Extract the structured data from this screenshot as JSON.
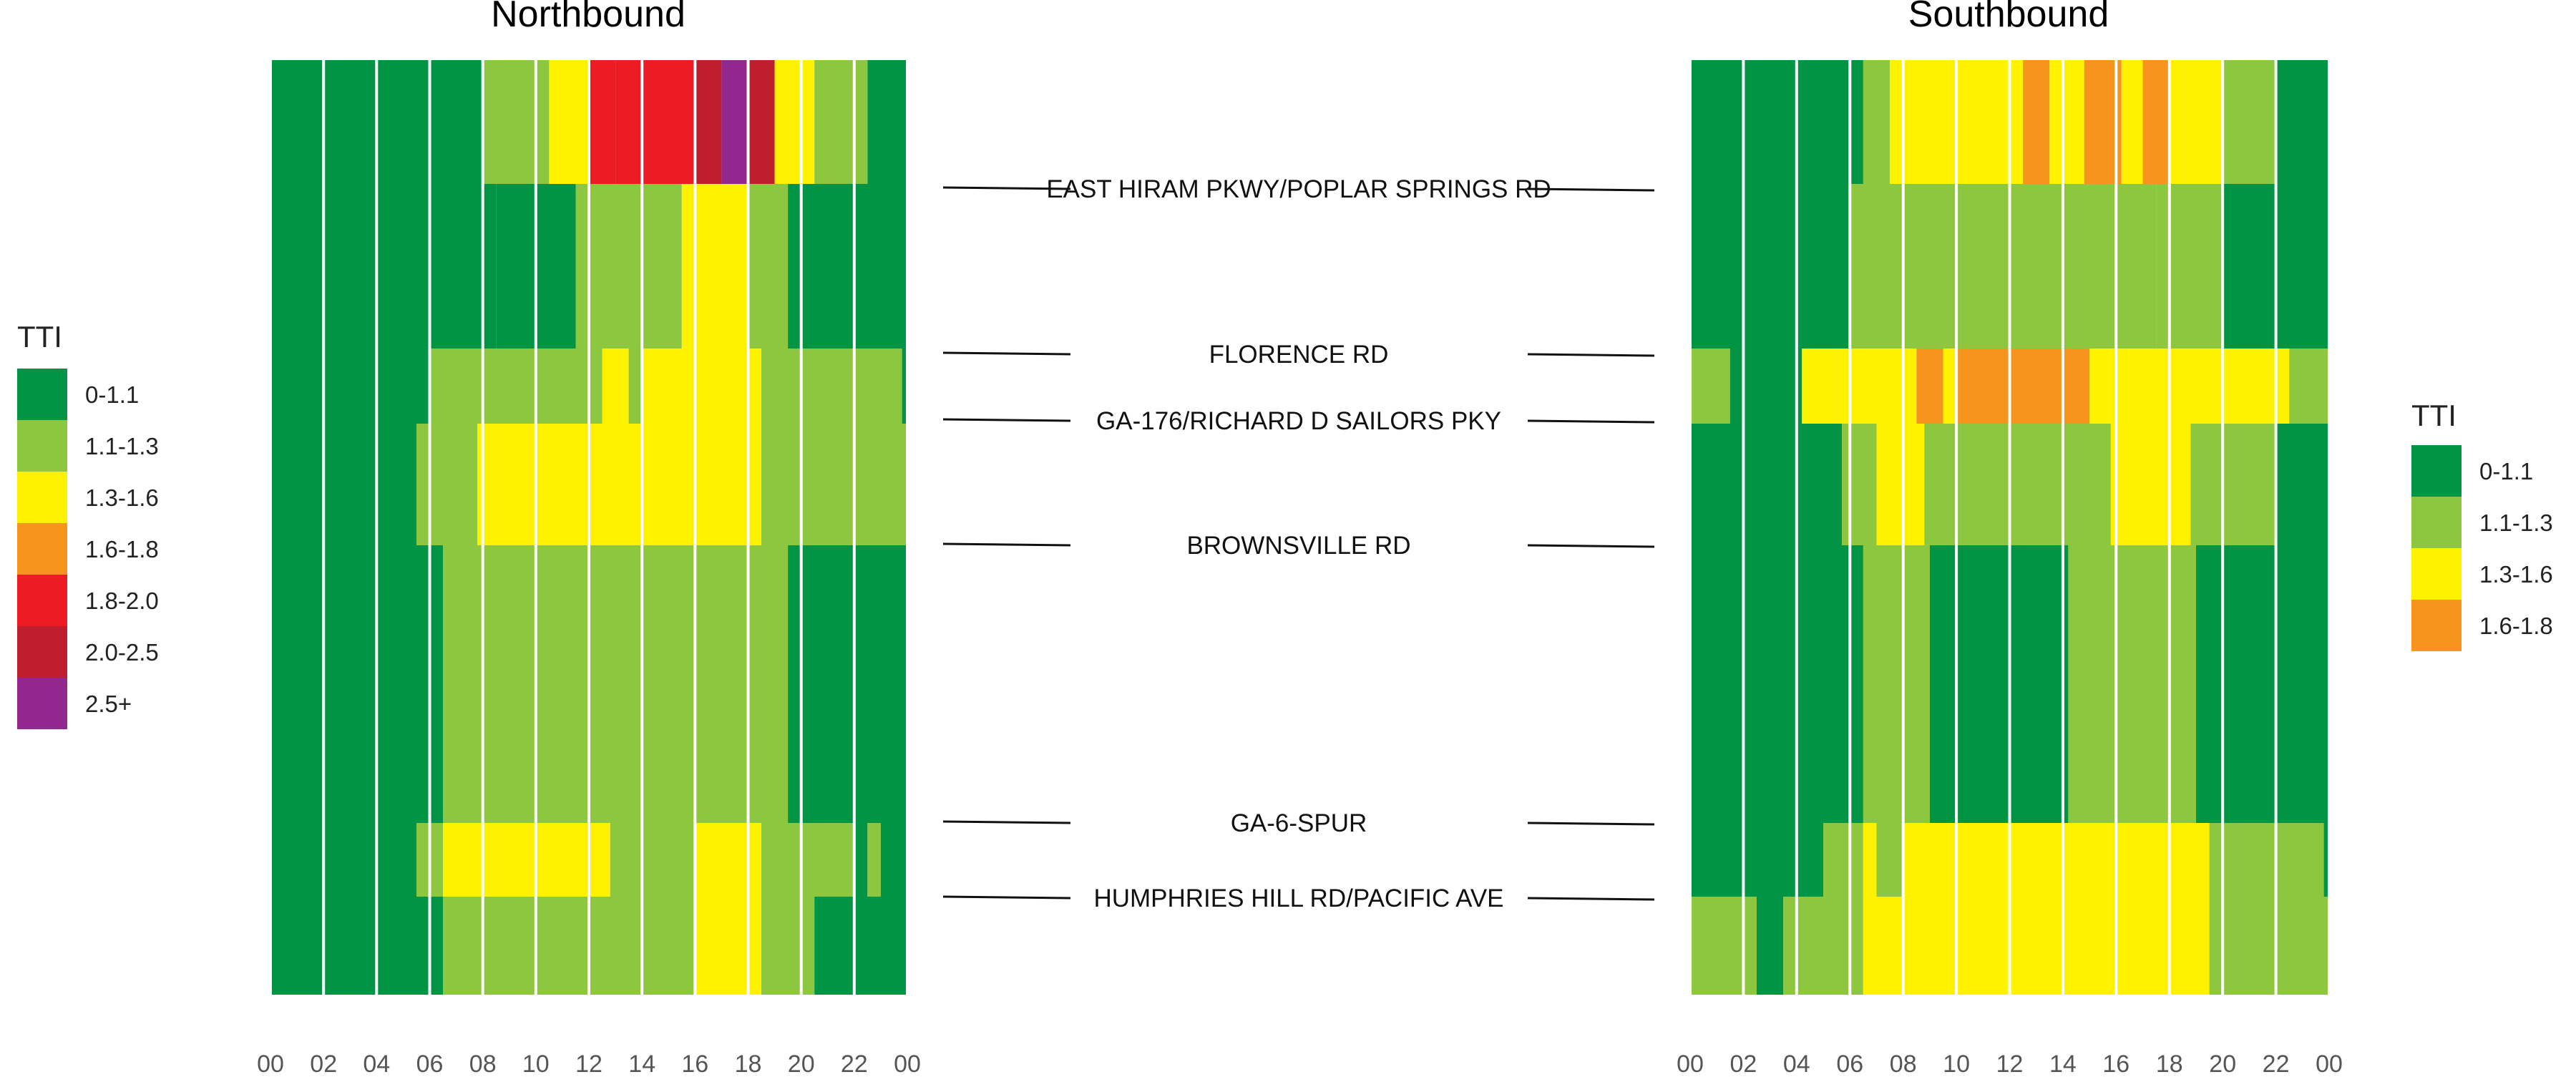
{
  "chart_data": [
    {
      "type": "heatmap",
      "title": "Northbound",
      "x_ticks": [
        "00",
        "02",
        "04",
        "06",
        "08",
        "10",
        "12",
        "14",
        "16",
        "18",
        "20",
        "22",
        "00"
      ],
      "xlim_hours": [
        0,
        24
      ],
      "legend": {
        "title": "TTI",
        "placement": "left",
        "entries": [
          {
            "label": "0-1.1",
            "color": "#009444"
          },
          {
            "label": "1.1-1.3",
            "color": "#8DC63F"
          },
          {
            "label": "1.3-1.6",
            "color": "#FFF200"
          },
          {
            "label": "1.6-1.8",
            "color": "#F7941D"
          },
          {
            "label": "1.8-2.0",
            "color": "#ED1C24"
          },
          {
            "label": "2.0-2.5",
            "color": "#BE1E2D"
          },
          {
            "label": "2.5+",
            "color": "#92278F"
          }
        ]
      },
      "segments": [
        {
          "runs": [
            [
              0,
              8,
              0
            ],
            [
              8,
              10.5,
              1
            ],
            [
              10.5,
              12,
              2
            ],
            [
              12,
              13,
              4
            ],
            [
              13,
              16,
              4
            ],
            [
              16,
              17,
              5
            ],
            [
              17,
              18,
              6
            ],
            [
              18,
              19,
              5
            ],
            [
              19,
              20.5,
              2
            ],
            [
              20.5,
              22.5,
              1
            ],
            [
              22.5,
              24,
              0
            ]
          ]
        },
        {
          "runs": [
            [
              0,
              8.5,
              0
            ],
            [
              8.5,
              11.5,
              0
            ],
            [
              11.5,
              15.5,
              1
            ],
            [
              15.5,
              18,
              2
            ],
            [
              18,
              19.5,
              1
            ],
            [
              19.5,
              24,
              0
            ]
          ]
        },
        {
          "runs": [
            [
              0,
              6,
              0
            ],
            [
              6,
              12.5,
              1
            ],
            [
              12.5,
              13.5,
              2
            ],
            [
              13.5,
              14,
              1
            ],
            [
              14,
              18.5,
              2
            ],
            [
              18.5,
              23.8,
              1
            ],
            [
              23.8,
              24,
              0
            ]
          ]
        },
        {
          "runs": [
            [
              0,
              5.5,
              0
            ],
            [
              5.5,
              7.8,
              1
            ],
            [
              7.8,
              18.5,
              2
            ],
            [
              18.5,
              24,
              1
            ]
          ]
        },
        {
          "runs": [
            [
              0,
              6.5,
              0
            ],
            [
              6.5,
              19.5,
              1
            ],
            [
              19.5,
              24,
              0
            ]
          ]
        },
        {
          "runs": [
            [
              0,
              5.5,
              0
            ],
            [
              5.5,
              6.5,
              1
            ],
            [
              6.5,
              12.8,
              2
            ],
            [
              12.8,
              16,
              1
            ],
            [
              16,
              18.5,
              2
            ],
            [
              18.5,
              22,
              1
            ],
            [
              22,
              22.5,
              0
            ],
            [
              22.5,
              23,
              1
            ],
            [
              23,
              24,
              0
            ]
          ]
        },
        {
          "runs": [
            [
              0,
              6.5,
              0
            ],
            [
              6.5,
              16,
              1
            ],
            [
              16,
              18.5,
              2
            ],
            [
              18.5,
              20.5,
              1
            ],
            [
              20.5,
              24,
              0
            ]
          ]
        }
      ]
    },
    {
      "type": "heatmap",
      "title": "Southbound",
      "x_ticks": [
        "00",
        "02",
        "04",
        "06",
        "08",
        "10",
        "12",
        "14",
        "16",
        "18",
        "20",
        "22",
        "00"
      ],
      "xlim_hours": [
        0,
        24
      ],
      "legend": {
        "title": "TTI",
        "placement": "right",
        "entries": [
          {
            "label": "0-1.1",
            "color": "#009444"
          },
          {
            "label": "1.1-1.3",
            "color": "#8DC63F"
          },
          {
            "label": "1.3-1.6",
            "color": "#FFF200"
          },
          {
            "label": "1.6-1.8",
            "color": "#F7941D"
          }
        ]
      },
      "segments": [
        {
          "runs": [
            [
              0,
              6.5,
              0
            ],
            [
              6.5,
              7.5,
              1
            ],
            [
              7.5,
              12.5,
              2
            ],
            [
              12.5,
              13.5,
              3
            ],
            [
              13.5,
              14.8,
              2
            ],
            [
              14.8,
              16.2,
              3
            ],
            [
              16.2,
              17,
              2
            ],
            [
              17,
              18,
              3
            ],
            [
              18,
              18.5,
              2
            ],
            [
              18.5,
              20,
              2
            ],
            [
              20,
              22,
              1
            ],
            [
              22,
              24,
              0
            ]
          ]
        },
        {
          "runs": [
            [
              0,
              6,
              0
            ],
            [
              6,
              17.5,
              1
            ],
            [
              17.5,
              20,
              1
            ],
            [
              20,
              24,
              0
            ]
          ]
        },
        {
          "runs": [
            [
              0,
              1.5,
              1
            ],
            [
              1.5,
              4.2,
              0
            ],
            [
              4.2,
              5.5,
              2
            ],
            [
              5.5,
              8.5,
              2
            ],
            [
              8.5,
              9.5,
              3
            ],
            [
              9.5,
              10,
              2
            ],
            [
              10,
              15,
              3
            ],
            [
              15,
              16.5,
              2
            ],
            [
              16.5,
              22.5,
              2
            ],
            [
              22.5,
              24,
              1
            ]
          ]
        },
        {
          "runs": [
            [
              0,
              5.7,
              0
            ],
            [
              5.7,
              7,
              1
            ],
            [
              7,
              8.8,
              2
            ],
            [
              8.8,
              15.8,
              1
            ],
            [
              15.8,
              18.8,
              2
            ],
            [
              18.8,
              22,
              1
            ],
            [
              22,
              24,
              0
            ]
          ]
        },
        {
          "runs": [
            [
              0,
              6.5,
              0
            ],
            [
              6.5,
              9,
              1
            ],
            [
              9,
              14.2,
              0
            ],
            [
              14.2,
              19,
              1
            ],
            [
              19,
              24,
              0
            ]
          ]
        },
        {
          "runs": [
            [
              0,
              5,
              0
            ],
            [
              5,
              6.5,
              1
            ],
            [
              6.5,
              7,
              2
            ],
            [
              7,
              8,
              1
            ],
            [
              8,
              9.5,
              2
            ],
            [
              9.5,
              19.5,
              2
            ],
            [
              19.5,
              23.8,
              1
            ],
            [
              23.8,
              24,
              0
            ]
          ]
        },
        {
          "runs": [
            [
              0,
              2.5,
              1
            ],
            [
              2.5,
              3.5,
              0
            ],
            [
              3.5,
              6.5,
              1
            ],
            [
              6.5,
              19.5,
              2
            ],
            [
              19.5,
              24,
              1
            ]
          ]
        }
      ]
    }
  ],
  "road_labels": [
    "EAST HIRAM PKWY/POPLAR SPRINGS RD",
    "FLORENCE RD",
    "GA-176/RICHARD D SAILORS PKY",
    "BROWNSVILLE RD",
    "GA-6-SPUR",
    "HUMPHRIES HILL RD/PACIFIC AVE"
  ]
}
